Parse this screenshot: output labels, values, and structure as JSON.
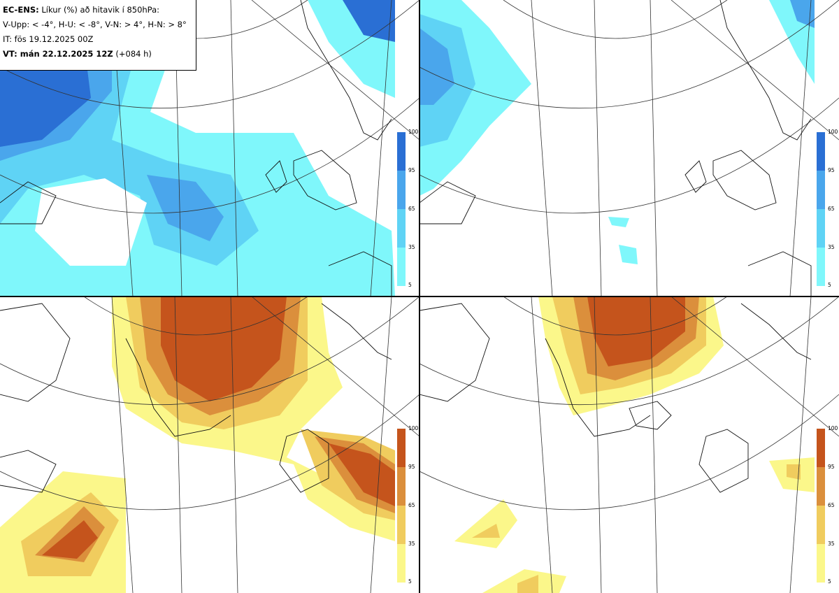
{
  "header": {
    "title_bold": "EC-ENS:",
    "title_rest": "Líkur (%) að hitavik í 850hPa:",
    "thresholds": "V-Upp: < -4°, H-U: < -8°, V-N: > 4°, H-N: > 8°",
    "issue_time": "IT: fös 19.12.2025 00Z",
    "valid_label": "VT: mán 22.12.2025 12Z",
    "valid_offset": "(+084 h)"
  },
  "colors": {
    "cold": [
      "#7ff7fb",
      "#5fd3f5",
      "#4aa6ec",
      "#2a6fd4"
    ],
    "warm": [
      "#fbf78a",
      "#f0cc5e",
      "#db8f3c",
      "#c5541c"
    ]
  },
  "colorbar": {
    "ticks": [
      "100",
      "95",
      "65",
      "35",
      "5"
    ]
  },
  "panels": [
    {
      "id": "V-Upp",
      "palette": "cold"
    },
    {
      "id": "H-U",
      "palette": "cold"
    },
    {
      "id": "V-N",
      "palette": "warm"
    },
    {
      "id": "H-N",
      "palette": "warm"
    }
  ]
}
